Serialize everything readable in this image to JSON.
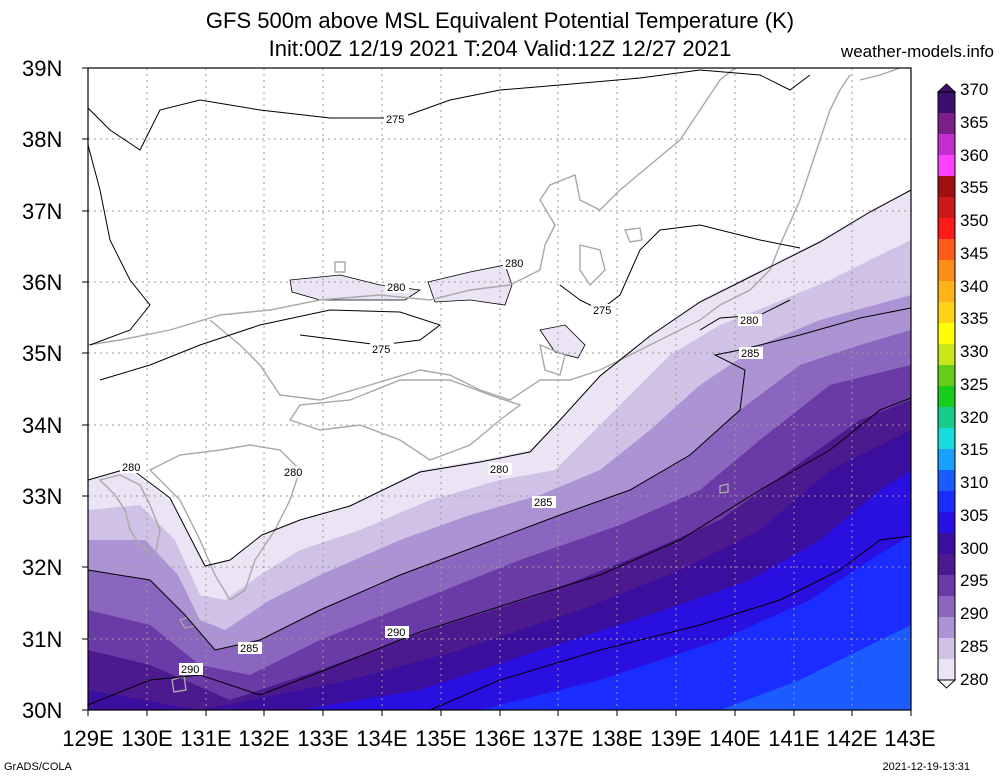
{
  "title_line1": "GFS 500m above MSL Equivalent Potential Temperature (K)",
  "title_line2": "Init:00Z 12/19 2021 T:204 Valid:12Z 12/27 2021",
  "site": "weather-models.info",
  "lat_labels": [
    "39N",
    "38N",
    "37N",
    "36N",
    "35N",
    "34N",
    "33N",
    "32N",
    "31N",
    "30N"
  ],
  "lon_labels": [
    "129E",
    "130E",
    "131E",
    "132E",
    "133E",
    "134E",
    "135E",
    "136E",
    "137E",
    "138E",
    "139E",
    "140E",
    "141E",
    "142E",
    "143E"
  ],
  "colorbar": {
    "labels": [
      "370",
      "365",
      "360",
      "355",
      "350",
      "345",
      "340",
      "335",
      "330",
      "325",
      "320",
      "315",
      "310",
      "305",
      "300",
      "295",
      "290",
      "285",
      "280"
    ],
    "colors": [
      "#3a0f6e",
      "#7c1f8a",
      "#c42ed1",
      "#ff40ff",
      "#a01010",
      "#cc1a1a",
      "#ff1a1a",
      "#ff5a1a",
      "#ff8c1a",
      "#ffb21a",
      "#ffd21a",
      "#ffff00",
      "#c8e61a",
      "#66cc1a",
      "#1acc1a",
      "#1acc8c",
      "#1adbdb",
      "#1aa0ff",
      "#1a5cff",
      "#1a2cff",
      "#2a10e0",
      "#3a0f9e",
      "#4c1a8e",
      "#6a3aa6",
      "#8a66bf",
      "#ac94d4",
      "#cfc2e6",
      "#ebe4f4"
    ]
  },
  "contour_labels": [
    "275",
    "275",
    "275",
    "280",
    "280",
    "280",
    "280",
    "280",
    "280",
    "285",
    "285",
    "285",
    "290",
    "290"
  ],
  "credit": "GrADS/COLA",
  "timestamp": "2021-12-19-13:31"
}
